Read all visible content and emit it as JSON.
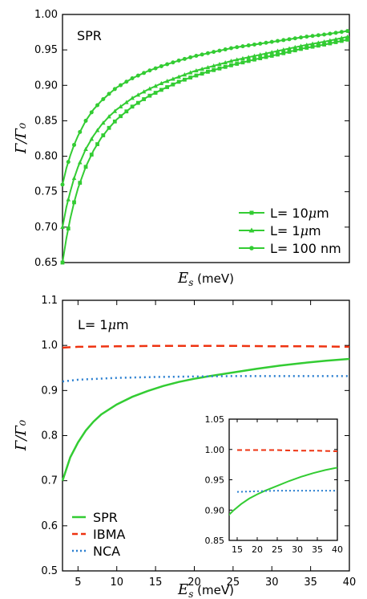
{
  "chart_data": [
    {
      "type": "line",
      "annotation": "SPR",
      "xlabel": "E_s",
      "xlabel_math": "E",
      "xlabel_sub": "s",
      "xlabel_unit": " (meV)",
      "ylabel": "Γ/Γ₀",
      "xlim": [
        3,
        40
      ],
      "ylim": [
        0.65,
        1.0
      ],
      "x_ticks": [],
      "y_ticks": [
        0.65,
        0.7,
        0.75,
        0.8,
        0.85,
        0.9,
        0.95,
        1.0
      ],
      "y_tick_labels": [
        "0.65",
        "0.70",
        "0.75",
        "0.80",
        "0.85",
        "0.90",
        "0.95",
        "1.00"
      ],
      "legend_position": "lower-right",
      "colors": {
        "green": "#33cc33"
      },
      "series": [
        {
          "name": "L= 10μm",
          "legend_label": "L= 10",
          "legend_mu": "μ",
          "legend_unit": "m",
          "marker": "square",
          "x": [
            3,
            3.5,
            4,
            4.5,
            5,
            6,
            7,
            8,
            9,
            10,
            12,
            14,
            16,
            18,
            20,
            22,
            25,
            28,
            31,
            34,
            37,
            40
          ],
          "y": [
            0.65,
            0.684,
            0.712,
            0.735,
            0.755,
            0.785,
            0.808,
            0.826,
            0.84,
            0.852,
            0.87,
            0.884,
            0.895,
            0.905,
            0.913,
            0.92,
            0.929,
            0.937,
            0.944,
            0.952,
            0.958,
            0.965
          ]
        },
        {
          "name": "L= 1μm",
          "legend_label": "L= 1",
          "legend_mu": "μ",
          "legend_unit": "m",
          "marker": "triangle",
          "x": [
            3,
            3.5,
            4,
            4.5,
            5,
            6,
            7,
            8,
            9,
            10,
            12,
            14,
            16,
            18,
            20,
            22,
            25,
            28,
            31,
            34,
            37,
            40
          ],
          "y": [
            0.7,
            0.728,
            0.75,
            0.769,
            0.785,
            0.81,
            0.829,
            0.844,
            0.856,
            0.866,
            0.882,
            0.894,
            0.904,
            0.912,
            0.92,
            0.926,
            0.935,
            0.942,
            0.949,
            0.956,
            0.962,
            0.969
          ]
        },
        {
          "name": "L= 100 nm",
          "legend_label": "L= 100 nm",
          "marker": "circle",
          "x": [
            3,
            3.5,
            4,
            4.5,
            5,
            6,
            7,
            8,
            9,
            10,
            12,
            14,
            16,
            18,
            20,
            22,
            25,
            28,
            31,
            34,
            37,
            40
          ],
          "y": [
            0.76,
            0.783,
            0.801,
            0.816,
            0.829,
            0.85,
            0.866,
            0.878,
            0.888,
            0.897,
            0.91,
            0.92,
            0.928,
            0.935,
            0.941,
            0.946,
            0.953,
            0.958,
            0.963,
            0.968,
            0.972,
            0.977
          ]
        }
      ]
    },
    {
      "type": "line",
      "annotation": "L= 1",
      "annotation_mu": "μ",
      "annotation_unit": "m",
      "xlabel": "E_s",
      "xlabel_math": "E",
      "xlabel_sub": "s",
      "xlabel_unit": " (meV)",
      "ylabel": "Γ/Γ₀",
      "xlim": [
        3,
        40
      ],
      "ylim": [
        0.5,
        1.1
      ],
      "x_ticks": [
        5,
        10,
        15,
        20,
        25,
        30,
        35,
        40
      ],
      "x_tick_labels": [
        "5",
        "10",
        "15",
        "20",
        "25",
        "30",
        "35",
        "40"
      ],
      "y_ticks": [
        0.5,
        0.6,
        0.7,
        0.8,
        0.9,
        1.0,
        1.1
      ],
      "y_tick_labels": [
        "0.5",
        "0.6",
        "0.7",
        "0.8",
        "0.9",
        "1.0",
        "1.1"
      ],
      "legend_position": "lower-left",
      "colors": {
        "SPR": "#33cc33",
        "IBMA": "#ee3311",
        "NCA": "#2a7fd0"
      },
      "series": [
        {
          "name": "SPR",
          "style": "solid",
          "x": [
            3,
            4,
            5,
            6,
            7,
            8,
            10,
            12,
            14,
            16,
            18,
            20,
            22,
            25,
            28,
            31,
            34,
            37,
            40
          ],
          "y": [
            0.7,
            0.752,
            0.785,
            0.811,
            0.831,
            0.847,
            0.869,
            0.886,
            0.899,
            0.91,
            0.919,
            0.926,
            0.932,
            0.94,
            0.948,
            0.955,
            0.961,
            0.966,
            0.97
          ]
        },
        {
          "name": "IBMA",
          "style": "dashed",
          "x": [
            3,
            5,
            10,
            15,
            20,
            25,
            30,
            35,
            40
          ],
          "y": [
            0.995,
            0.997,
            0.998,
            0.999,
            0.999,
            0.999,
            0.998,
            0.998,
            0.997
          ]
        },
        {
          "name": "NCA",
          "style": "dotted",
          "x": [
            3,
            5,
            10,
            15,
            20,
            25,
            30,
            35,
            40
          ],
          "y": [
            0.92,
            0.924,
            0.928,
            0.93,
            0.931,
            0.932,
            0.932,
            0.932,
            0.932
          ]
        }
      ],
      "inset": {
        "xlim": [
          13,
          40
        ],
        "ylim": [
          0.85,
          1.05
        ],
        "x_ticks": [
          15,
          20,
          25,
          30,
          35,
          40
        ],
        "x_tick_labels": [
          "15",
          "20",
          "25",
          "30",
          "35",
          "40"
        ],
        "y_ticks": [
          0.85,
          0.9,
          0.95,
          1.0,
          1.05
        ],
        "y_tick_labels": [
          "0.85",
          "0.90",
          "0.95",
          "1.00",
          "1.05"
        ]
      }
    }
  ]
}
